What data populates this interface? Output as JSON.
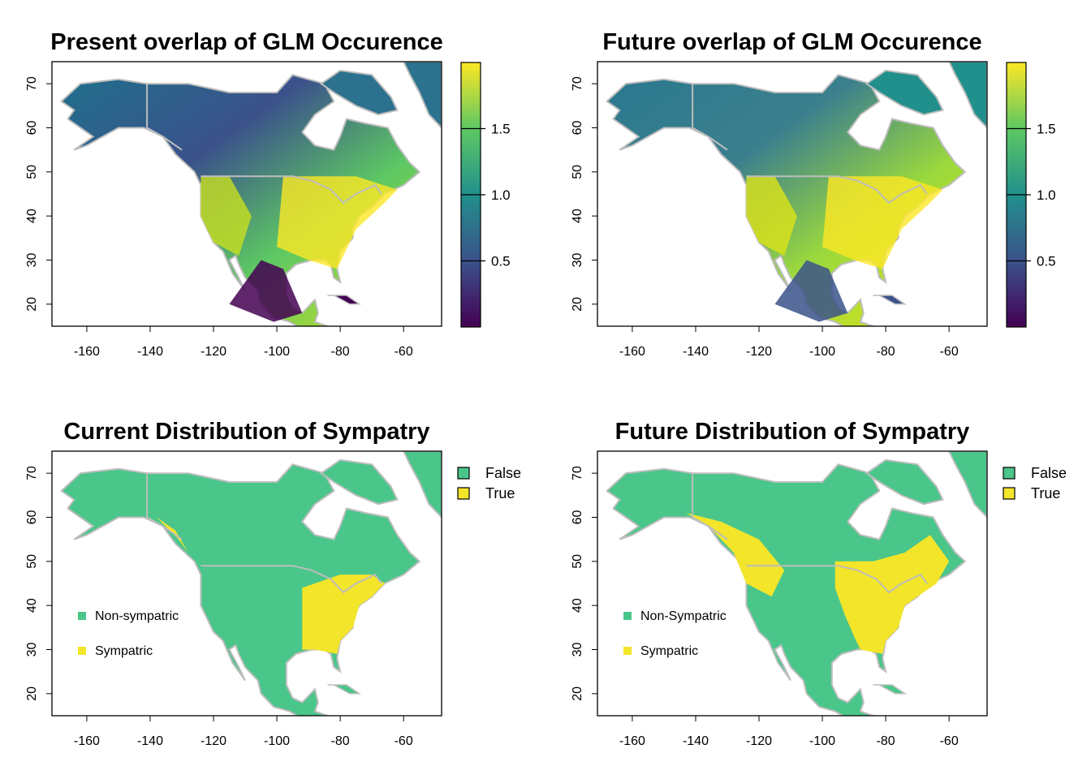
{
  "colors": {
    "viridis": [
      "#440154",
      "#3b528b",
      "#21908c",
      "#5dc863",
      "#fde725"
    ],
    "non_sympatric": "#4ac68a",
    "sympatric": "#f3e52a",
    "border": "#bdbdbd"
  },
  "panels": [
    {
      "title": "Present overlap of GLM Occurence",
      "type": "continuous",
      "colorbar": {
        "ticks": [
          "1.5",
          "1.0",
          "0.5"
        ],
        "tick_values": [
          1.5,
          1.0,
          0.5
        ],
        "range": [
          0,
          2
        ]
      }
    },
    {
      "title": "Future overlap of GLM Occurence",
      "type": "continuous",
      "colorbar": {
        "ticks": [
          "1.5",
          "1.0",
          "0.5"
        ],
        "tick_values": [
          1.5,
          1.0,
          0.5
        ],
        "range": [
          0,
          2
        ]
      }
    },
    {
      "title": "Current Distribution of Sympatry",
      "type": "categorical",
      "legend": [
        "False",
        "True"
      ],
      "inset_legend": [
        "Non-sympatric",
        "Sympatric"
      ]
    },
    {
      "title": "Future Distribution of Sympatry",
      "type": "categorical",
      "legend": [
        "False",
        "True"
      ],
      "inset_legend": [
        "Non-Sympatric",
        "Sympatric"
      ]
    }
  ],
  "axes": {
    "x_ticks": [
      "-160",
      "-140",
      "-120",
      "-100",
      "-80",
      "-60"
    ],
    "x_values": [
      -160,
      -140,
      -120,
      -100,
      -80,
      -60
    ],
    "y_ticks": [
      "20",
      "30",
      "40",
      "50",
      "60",
      "70"
    ],
    "y_values": [
      20,
      30,
      40,
      50,
      60,
      70
    ],
    "xlim": [
      -171,
      -48
    ],
    "ylim": [
      15,
      75
    ]
  }
}
